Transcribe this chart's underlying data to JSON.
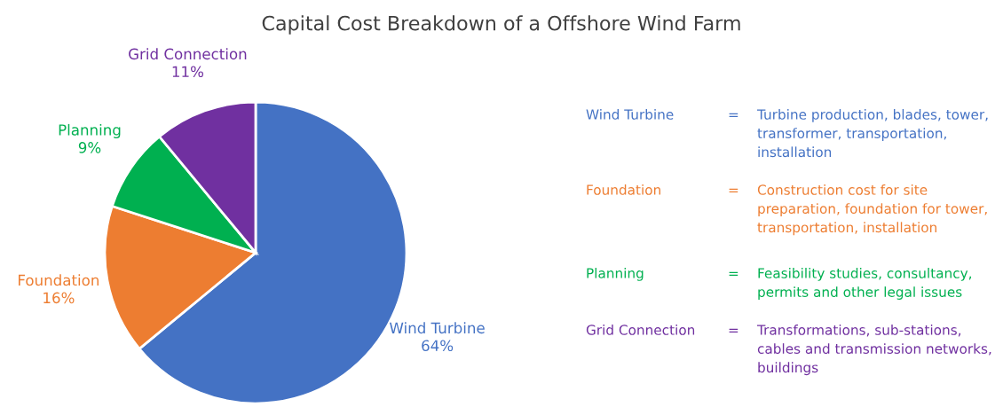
{
  "chart_data": {
    "type": "pie",
    "title": "Capital Cost Breakdown of a Offshore Wind Farm",
    "categories": [
      "Wind Turbine",
      "Foundation",
      "Planning",
      "Grid Connection"
    ],
    "values": [
      64,
      16,
      9,
      11
    ],
    "value_labels": [
      "64%",
      "16%",
      "9%",
      "11%"
    ],
    "colors": [
      "#4472c4",
      "#ed7d31",
      "#00b050",
      "#7030a0"
    ],
    "annotations": [
      "Wind Turbine",
      "=",
      "Turbine production, blades, tower,\ntransformer, transportation,\ninstallation",
      "Foundation",
      "=",
      "Construction cost for site\npreparation, foundation for tower,\ntransportation, installation",
      "Planning",
      "=",
      "Feasibility studies, consultancy,\npermits and other legal issues",
      "Grid Connection",
      "=",
      "Transformations, sub-stations,\ncables and transmission networks,\nbuildings"
    ],
    "legend": false
  }
}
